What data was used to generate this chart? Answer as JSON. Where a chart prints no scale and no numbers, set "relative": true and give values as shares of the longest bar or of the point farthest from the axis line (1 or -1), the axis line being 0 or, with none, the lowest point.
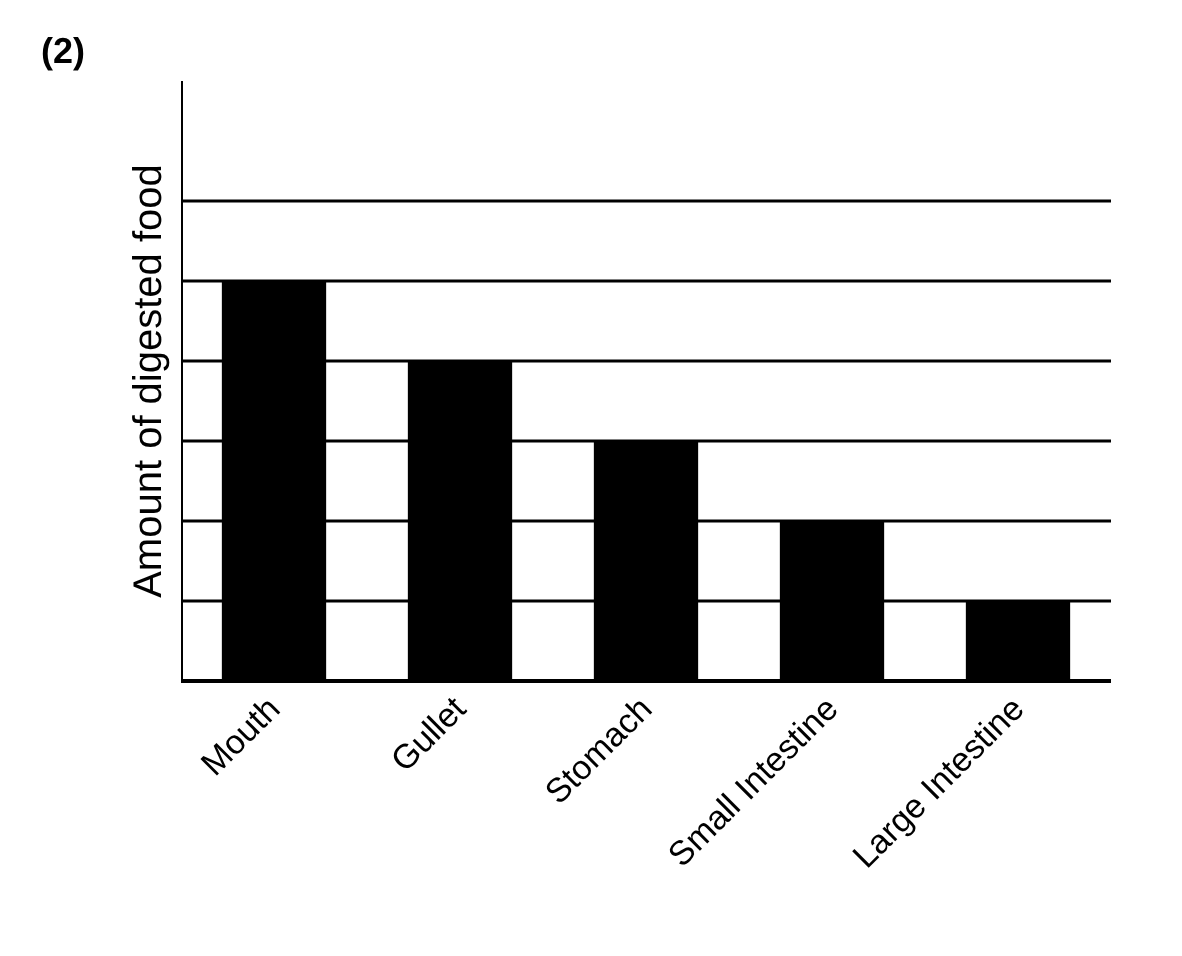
{
  "chart_data": {
    "type": "bar",
    "title": "(2)",
    "ylabel": "Amount of digested food",
    "categories": [
      "Mouth",
      "Gullet",
      "Stomach",
      "Small Intestine",
      "Large Intestine"
    ],
    "values": [
      1,
      0.8,
      0.6,
      0.4,
      0.2
    ],
    "color": "#000000",
    "relative": true,
    "grid": "y"
  }
}
